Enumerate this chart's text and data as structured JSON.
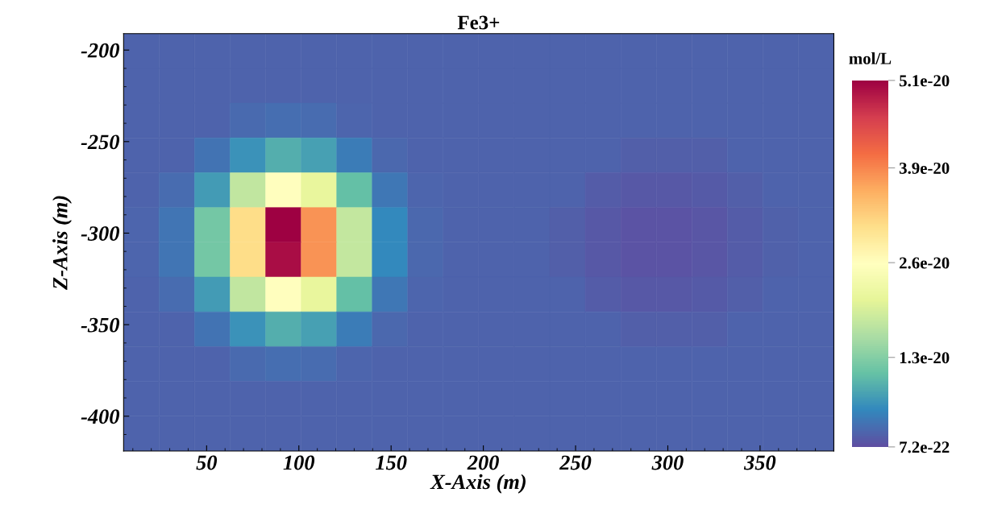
{
  "chart_data": {
    "type": "heatmap",
    "title": "Fe3+",
    "xlabel": "X-Axis (m)",
    "ylabel": "Z-Axis (m)",
    "clabel": "mol/L",
    "xlim": [
      5,
      390
    ],
    "ylim": [
      -419,
      -191
    ],
    "xticks": [
      50,
      100,
      150,
      200,
      250,
      300,
      350
    ],
    "yticks": [
      -200,
      -250,
      -300,
      -350,
      -400
    ],
    "clim": [
      7.2e-22,
      5.1e-20
    ],
    "cticks": [
      7.2e-22,
      1.3e-20,
      2.6e-20,
      3.9e-20,
      5.1e-20
    ],
    "grid": false,
    "cells": [
      [
        2.5e-21,
        2.5e-21,
        2.5e-21,
        2.5e-21,
        2.5e-21,
        2.5e-21,
        2.5e-21,
        2.5e-21,
        2.5e-21,
        2.5e-21,
        2.5e-21,
        2.5e-21,
        2.5e-21,
        2.5e-21,
        2.5e-21,
        2.5e-21,
        2.5e-21,
        2.5e-21,
        2.5e-21,
        2.5e-21
      ],
      [
        2.5e-21,
        2.5e-21,
        2.5e-21,
        2.5e-21,
        2.5e-21,
        2.5e-21,
        2.5e-21,
        2.5e-21,
        2.5e-21,
        2.5e-21,
        2.5e-21,
        2.5e-21,
        2.5e-21,
        2.5e-21,
        2.5e-21,
        2.5e-21,
        2.5e-21,
        2.5e-21,
        2.5e-21,
        2.5e-21
      ],
      [
        2.5e-21,
        2.5e-21,
        2.5e-21,
        3.1e-21,
        3.5e-21,
        3.3e-21,
        2.8e-21,
        2.5e-21,
        2.5e-21,
        2.5e-21,
        2.5e-21,
        2.5e-21,
        2.5e-21,
        2.5e-21,
        2.5e-21,
        2.5e-21,
        2.5e-21,
        2.5e-21,
        2.5e-21,
        2.5e-21
      ],
      [
        2.5e-21,
        2.5e-21,
        3.9e-21,
        6.8e-21,
        9.1e-21,
        7.8e-21,
        4.8e-21,
        3e-21,
        2.5e-21,
        2.5e-21,
        2.5e-21,
        2.5e-21,
        2.5e-21,
        2.5e-21,
        2.2e-21,
        2.2e-21,
        2.2e-21,
        2.5e-21,
        2.5e-21,
        2.5e-21
      ],
      [
        2.5e-21,
        3.4e-21,
        7.5e-21,
        1.77e-20,
        2.6e-20,
        2.15e-20,
        1.06e-20,
        4.3e-21,
        2.7e-21,
        2.5e-21,
        2.5e-21,
        2.5e-21,
        2.5e-21,
        2e-21,
        1.7e-21,
        1.6e-21,
        1.8e-21,
        2.2e-21,
        2.5e-21,
        2.5e-21
      ],
      [
        2.7e-21,
        4.1e-21,
        1.18e-20,
        3.1e-20,
        5.1e-20,
        3.8e-20,
        1.8e-20,
        6e-21,
        2.9e-21,
        2.5e-21,
        2.5e-21,
        2.5e-21,
        2.1e-21,
        1.7e-21,
        1.3e-21,
        1.2e-21,
        1.4e-21,
        1.9e-21,
        2.3e-21,
        2.5e-21
      ],
      [
        2.7e-21,
        4.1e-21,
        1.18e-20,
        3.1e-20,
        5e-20,
        3.8e-20,
        1.8e-20,
        6e-21,
        2.9e-21,
        2.5e-21,
        2.5e-21,
        2.5e-21,
        2.1e-21,
        1.7e-21,
        1.3e-21,
        1.2e-21,
        1.4e-21,
        1.9e-21,
        2.3e-21,
        2.5e-21
      ],
      [
        2.5e-21,
        3.4e-21,
        7.5e-21,
        1.77e-20,
        2.6e-20,
        2.15e-20,
        1.06e-20,
        4.3e-21,
        2.7e-21,
        2.5e-21,
        2.5e-21,
        2.5e-21,
        2.5e-21,
        2e-21,
        1.7e-21,
        1.6e-21,
        1.8e-21,
        2.2e-21,
        2.5e-21,
        2.5e-21
      ],
      [
        2.5e-21,
        2.5e-21,
        3.9e-21,
        6.8e-21,
        9.1e-21,
        7.8e-21,
        4.8e-21,
        3e-21,
        2.5e-21,
        2.5e-21,
        2.5e-21,
        2.5e-21,
        2.5e-21,
        2.5e-21,
        2.2e-21,
        2.2e-21,
        2.2e-21,
        2.5e-21,
        2.5e-21,
        2.5e-21
      ],
      [
        2.5e-21,
        2.5e-21,
        2.5e-21,
        3.1e-21,
        3.5e-21,
        3.3e-21,
        2.8e-21,
        2.5e-21,
        2.5e-21,
        2.5e-21,
        2.5e-21,
        2.5e-21,
        2.5e-21,
        2.5e-21,
        2.5e-21,
        2.5e-21,
        2.5e-21,
        2.5e-21,
        2.5e-21,
        2.5e-21
      ],
      [
        2.5e-21,
        2.5e-21,
        2.5e-21,
        2.5e-21,
        2.5e-21,
        2.5e-21,
        2.5e-21,
        2.5e-21,
        2.5e-21,
        2.5e-21,
        2.5e-21,
        2.5e-21,
        2.5e-21,
        2.5e-21,
        2.5e-21,
        2.5e-21,
        2.5e-21,
        2.5e-21,
        2.5e-21,
        2.5e-21
      ],
      [
        2.5e-21,
        2.5e-21,
        2.5e-21,
        2.5e-21,
        2.5e-21,
        2.5e-21,
        2.5e-21,
        2.5e-21,
        2.5e-21,
        2.5e-21,
        2.5e-21,
        2.5e-21,
        2.5e-21,
        2.5e-21,
        2.5e-21,
        2.5e-21,
        2.5e-21,
        2.5e-21,
        2.5e-21,
        2.5e-21
      ]
    ]
  }
}
